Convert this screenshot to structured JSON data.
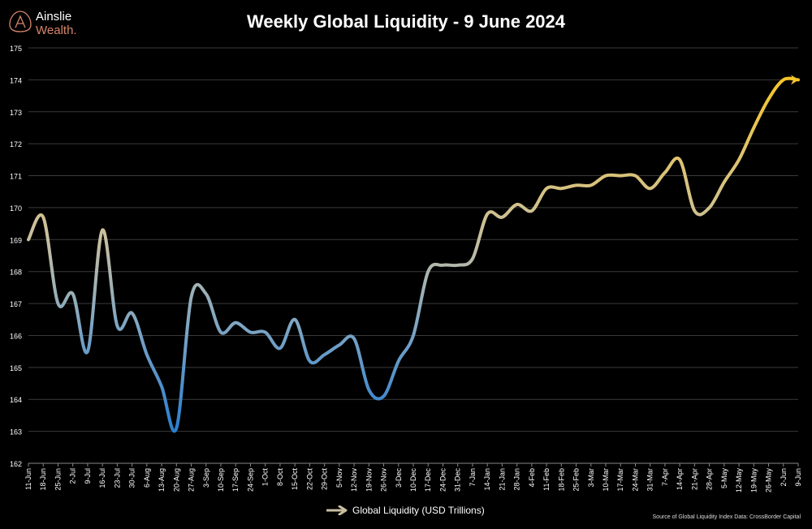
{
  "logo": {
    "line1": "Ainslie",
    "line2": "Wealth."
  },
  "chart_data": {
    "type": "line",
    "title": "Weekly Global Liquidity - 9 June 2024",
    "xlabel": "",
    "ylabel": "",
    "ylim": [
      162,
      175
    ],
    "yticks": [
      162,
      163,
      164,
      165,
      166,
      167,
      168,
      169,
      170,
      171,
      172,
      173,
      174,
      175
    ],
    "grid": true,
    "legend_position": "bottom-center",
    "categories": [
      "11-Jun",
      "18-Jun",
      "25-Jun",
      "2-Jul",
      "9-Jul",
      "16-Jul",
      "23-Jul",
      "30-Jul",
      "6-Aug",
      "13-Aug",
      "20-Aug",
      "27-Aug",
      "3-Sep",
      "10-Sep",
      "17-Sep",
      "24-Sep",
      "1-Oct",
      "8-Oct",
      "15-Oct",
      "22-Oct",
      "29-Oct",
      "5-Nov",
      "12-Nov",
      "19-Nov",
      "26-Nov",
      "3-Dec",
      "10-Dec",
      "17-Dec",
      "24-Dec",
      "31-Dec",
      "7-Jan",
      "14-Jan",
      "21-Jan",
      "28-Jan",
      "4-Feb",
      "11-Feb",
      "18-Feb",
      "25-Feb",
      "3-Mar",
      "10-Mar",
      "17-Mar",
      "24-Mar",
      "31-Mar",
      "7-Apr",
      "14-Apr",
      "21-Apr",
      "28-Apr",
      "5-May",
      "12-May",
      "19-May",
      "26-May",
      "2-Jun",
      "9-Jun"
    ],
    "series": [
      {
        "name": "Global Liquidity (USD Trillions)",
        "values": [
          169.0,
          169.7,
          167.0,
          167.3,
          165.5,
          169.3,
          166.3,
          166.7,
          165.4,
          164.4,
          163.1,
          167.2,
          167.3,
          166.1,
          166.4,
          166.1,
          166.1,
          165.6,
          166.5,
          165.2,
          165.4,
          165.7,
          165.9,
          164.3,
          164.1,
          165.2,
          166.0,
          168.0,
          168.2,
          168.2,
          168.4,
          169.8,
          169.7,
          170.1,
          169.9,
          170.6,
          170.6,
          170.7,
          170.7,
          171.0,
          171.0,
          171.0,
          170.6,
          171.1,
          171.5,
          169.9,
          170.0,
          170.8,
          171.5,
          172.5,
          173.4,
          174.0,
          174.0
        ]
      }
    ],
    "colors": {
      "low": "#2b7fd0",
      "mid": "#c9bf9f",
      "high": "#f5c52a",
      "grid": "#3a3a3a",
      "axis": "#888888"
    },
    "source": "Source of Global Liquidity Index Data: CrossBorder Capital"
  }
}
